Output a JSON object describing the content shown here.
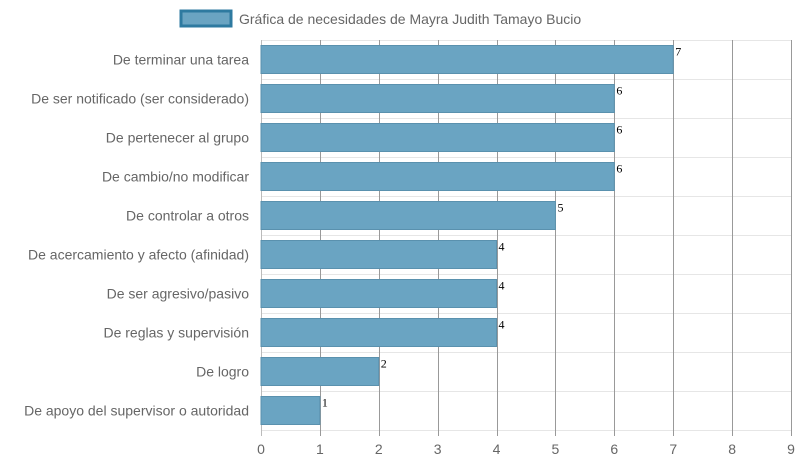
{
  "chart_data": {
    "type": "bar",
    "orientation": "horizontal",
    "legend": {
      "label": "Gráfica de necesidades de Mayra Judith Tamayo Bucio",
      "placement": "top"
    },
    "categories": [
      "De terminar una tarea",
      "De ser notificado (ser considerado)",
      "De pertenecer al grupo",
      "De cambio/no modificar",
      "De controlar a otros",
      "De acercamiento y afecto (afinidad)",
      "De ser agresivo/pasivo",
      "De reglas y supervisión",
      "De logro",
      "De apoyo del supervisor o autoridad"
    ],
    "series": [
      {
        "name": "Gráfica de necesidades de Mayra Judith Tamayo Bucio",
        "values": [
          7,
          6,
          6,
          6,
          5,
          4,
          4,
          4,
          2,
          1
        ]
      }
    ],
    "xlim": [
      0,
      9
    ],
    "xticks": [
      0,
      1,
      2,
      3,
      4,
      5,
      6,
      7,
      8,
      9
    ],
    "grid": true,
    "data_labels": true,
    "colors": {
      "bar_fill": "#6aa4c2",
      "bar_stroke": "#5a91ae",
      "legend_fill": "#6aa4c2",
      "legend_stroke": "#2e7aa0"
    }
  }
}
